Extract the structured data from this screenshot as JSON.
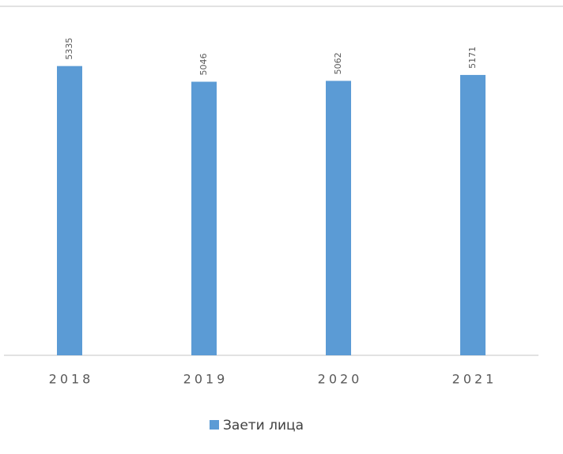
{
  "chart_data": {
    "type": "bar",
    "categories": [
      "2018",
      "2019",
      "2020",
      "2021"
    ],
    "series": [
      {
        "name": "Заети лица",
        "color": "#5b9bd5",
        "values": [
          5335,
          5046,
          5062,
          5171
        ]
      }
    ],
    "ylim": [
      0,
      6000
    ],
    "legend": "bottom"
  }
}
